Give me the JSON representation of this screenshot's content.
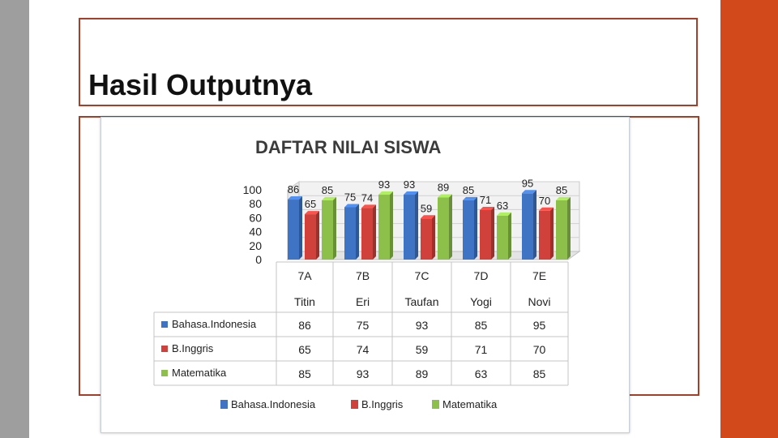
{
  "slide": {
    "title": "Hasil Outputnya",
    "accent_color": "#d2491b",
    "border_color": "#a93d25"
  },
  "chart_data": {
    "type": "bar",
    "title": "DAFTAR NILAI SISWA",
    "categories": [
      "7A",
      "7B",
      "7C",
      "7D",
      "7E"
    ],
    "names": [
      "Titin",
      "Eri",
      "Taufan",
      "Yogi",
      "Novi"
    ],
    "series": [
      {
        "name": "Bahasa.Indonesia",
        "color": "#3f74c4",
        "values": [
          86,
          75,
          93,
          85,
          95
        ]
      },
      {
        "name": "B.Inggris",
        "color": "#d0413b",
        "values": [
          65,
          74,
          59,
          71,
          70
        ]
      },
      {
        "name": "Matematika",
        "color": "#8cc04a",
        "values": [
          85,
          93,
          89,
          63,
          85
        ]
      }
    ],
    "y_ticks": [
      100,
      80,
      60,
      40,
      20,
      0
    ],
    "ylim": [
      0,
      100
    ],
    "grid": true,
    "legend_position": "bottom",
    "data_table": true
  }
}
